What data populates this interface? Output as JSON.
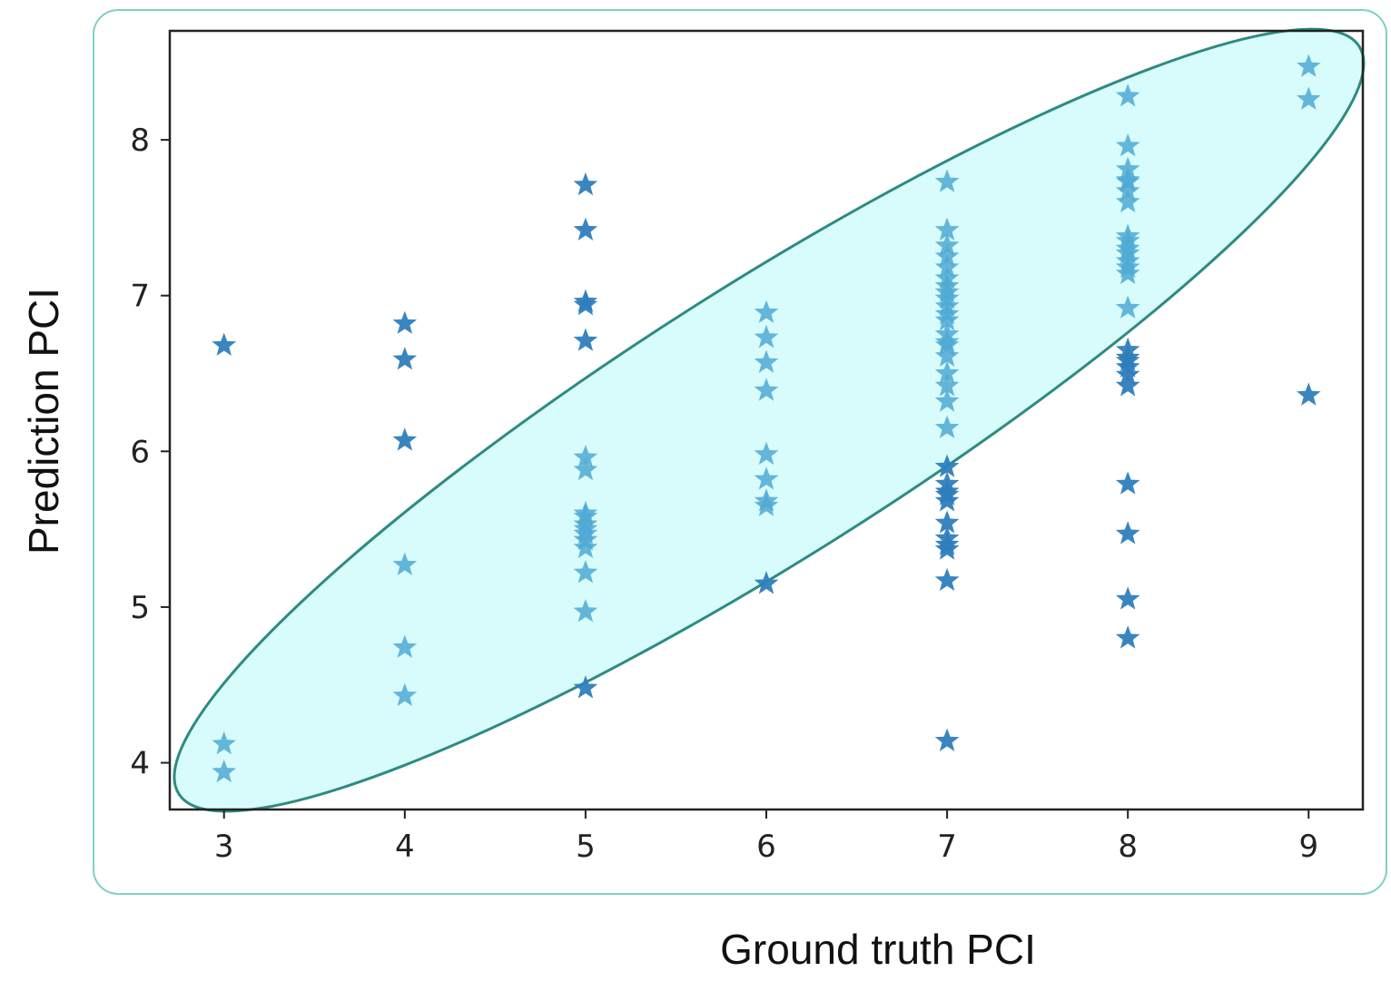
{
  "chart_data": {
    "type": "scatter",
    "title": "",
    "xlabel": "Ground truth PCI",
    "ylabel": "Prediction PCI",
    "xlim": [
      2.7,
      9.3
    ],
    "ylim": [
      3.7,
      8.7
    ],
    "xticks": [
      3,
      4,
      5,
      6,
      7,
      8,
      9
    ],
    "yticks": [
      4,
      5,
      6,
      7,
      8
    ],
    "grid": false,
    "marker": "star",
    "colors": {
      "outside": "#2f7ebc",
      "inside": "#4fa9d3",
      "ellipse_fill": "#d8fbfb",
      "ellipse_stroke": "#2e8b80",
      "frame": "#7fcfc6"
    },
    "highlight_ellipse": {
      "center": [
        5.98,
        6.18
      ],
      "description_in_data_units_endpoints": [
        [
          2.75,
          3.8
        ],
        [
          9.28,
          8.6
        ]
      ]
    },
    "series": [
      {
        "x": [
          3,
          3,
          3,
          4,
          4,
          4,
          4,
          4,
          4,
          5,
          5,
          5,
          5,
          5,
          5,
          5,
          5,
          5,
          5,
          5,
          5,
          5,
          5,
          5,
          5,
          5,
          6,
          6,
          6,
          6,
          6,
          6,
          6,
          6,
          6,
          7,
          7,
          7,
          7,
          7,
          7,
          7,
          7,
          7,
          7,
          7,
          7,
          7,
          7,
          7,
          7,
          7,
          7,
          7,
          7,
          7,
          7,
          7,
          7,
          7,
          7,
          7,
          7,
          7,
          7,
          7,
          8,
          8,
          8,
          8,
          8,
          8,
          8,
          8,
          8,
          8,
          8,
          8,
          8,
          8,
          8,
          8,
          8,
          8,
          8,
          8,
          8,
          8,
          8,
          8,
          8,
          9,
          9,
          9
        ],
        "y": [
          6.68,
          4.12,
          3.94,
          6.82,
          6.59,
          6.07,
          5.27,
          4.74,
          4.43,
          7.71,
          7.42,
          6.96,
          6.94,
          6.71,
          5.96,
          5.88,
          5.6,
          5.53,
          5.47,
          5.43,
          5.38,
          5.22,
          4.97,
          4.48,
          5.5,
          5.58,
          6.89,
          6.73,
          6.57,
          6.39,
          5.98,
          5.82,
          5.68,
          5.65,
          5.15,
          7.73,
          7.42,
          7.32,
          7.25,
          7.18,
          7.11,
          7.02,
          6.98,
          6.93,
          6.84,
          6.75,
          6.68,
          6.61,
          6.5,
          6.42,
          6.32,
          6.15,
          5.9,
          5.79,
          5.72,
          5.68,
          5.54,
          5.44,
          5.4,
          5.37,
          5.17,
          4.14,
          7.06,
          6.88,
          6.7,
          5.74,
          8.28,
          7.96,
          7.81,
          7.73,
          7.67,
          7.6,
          7.38,
          7.3,
          7.22,
          7.14,
          6.92,
          6.65,
          6.58,
          6.54,
          6.49,
          6.42,
          5.79,
          5.47,
          5.05,
          4.8,
          7.35,
          7.27,
          7.18,
          7.74,
          6.6,
          8.47,
          8.26,
          6.36
        ]
      }
    ]
  }
}
